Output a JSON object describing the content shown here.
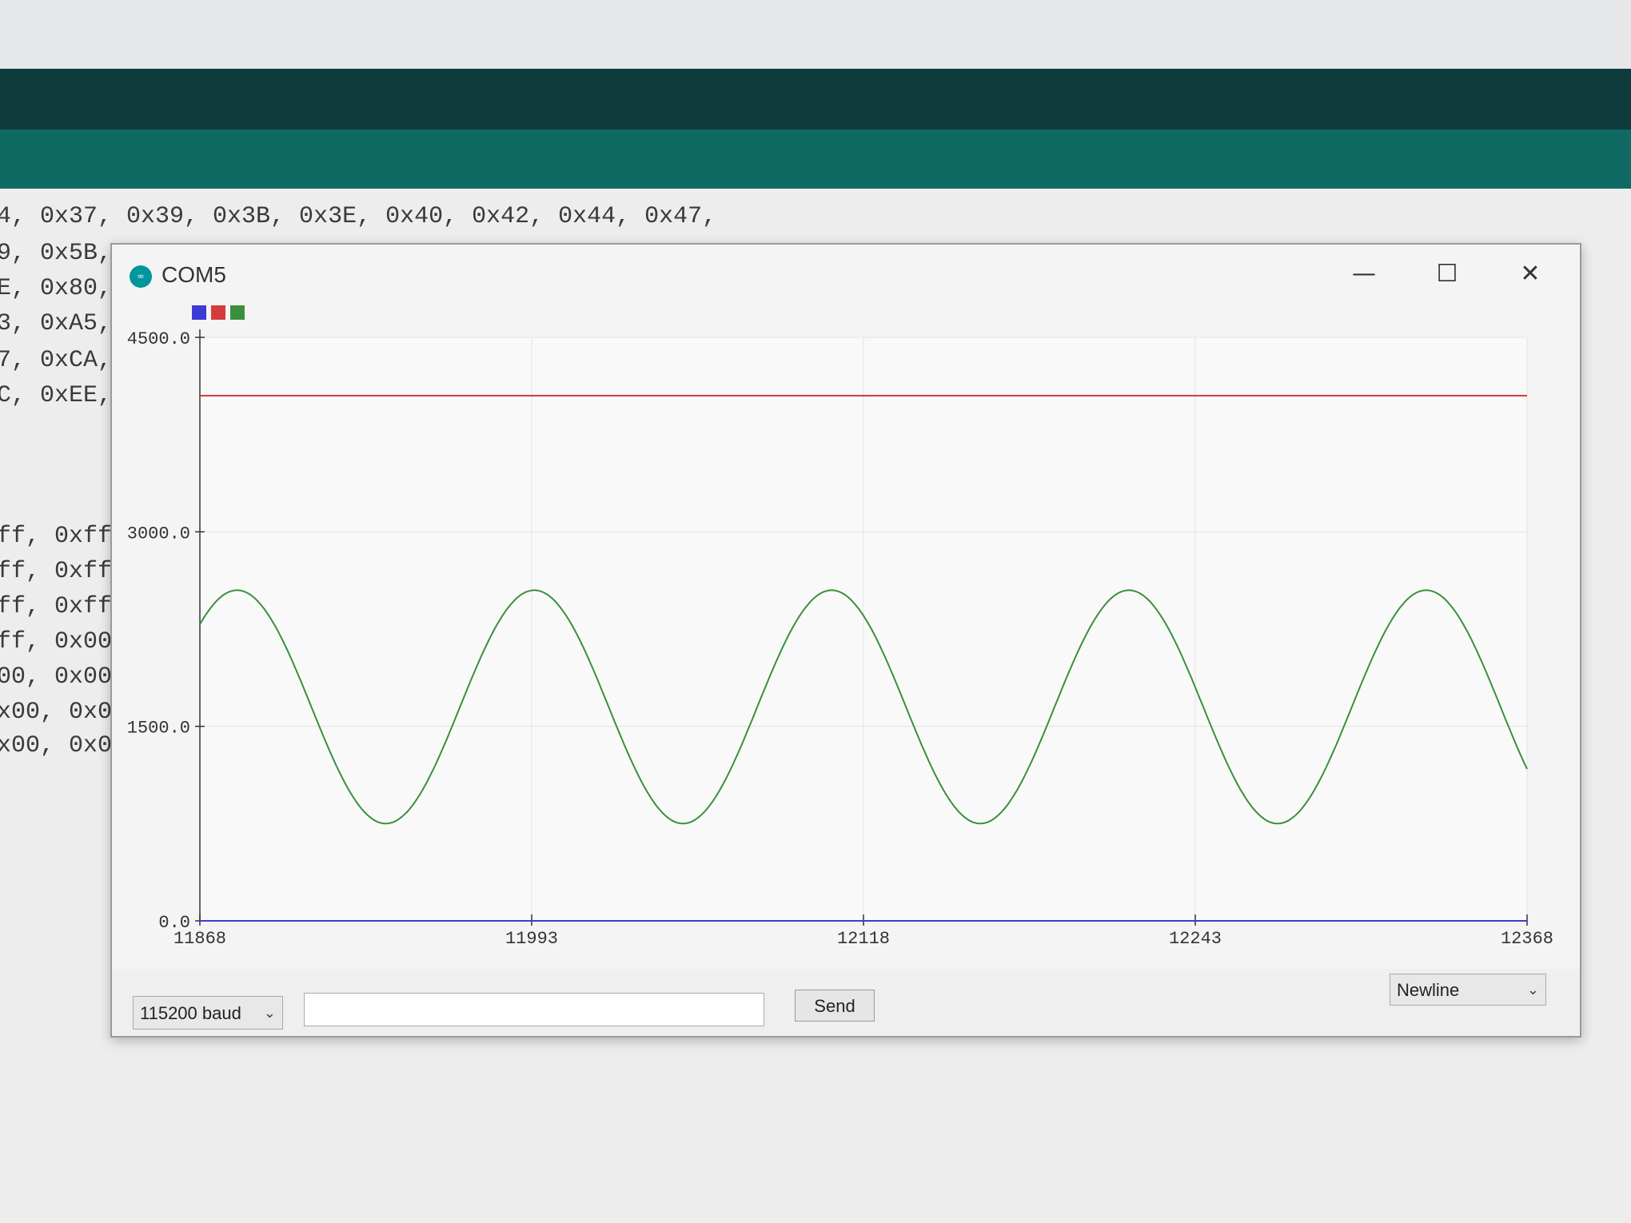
{
  "editor": {
    "lines": [
      "4, 0x37, 0x39, 0x3B, 0x3E, 0x40, 0x42, 0x44, 0x47,",
      "9, 0x5B,",
      "E, 0x80,",
      "3, 0xA5,",
      "7, 0xCA,",
      "C, 0xEE,",
      "ff, 0xff,",
      "ff, 0xff,",
      "ff, 0xff,",
      "ff, 0x00,",
      "00, 0x00,",
      "x00, 0x00,",
      "x00, 0x00,"
    ]
  },
  "window": {
    "title": "COM5",
    "icon": "arduino-logo-icon",
    "controls": {
      "minimize": "—",
      "maximize": "☐",
      "close": "✕"
    }
  },
  "colors": {
    "series1": "#3b3bd6",
    "series2": "#d63b3b",
    "series3": "#3b8f3b",
    "grid": "#e2e2e2"
  },
  "chart_data": {
    "type": "line",
    "ylim": [
      0,
      4500
    ],
    "y_ticks": [
      "4500.0",
      "3000.0",
      "1500.0",
      "0.0"
    ],
    "y_tick_values": [
      4500,
      3000,
      1500,
      0
    ],
    "xlim": [
      11868,
      12368
    ],
    "x_ticks": [
      "11868",
      "11993",
      "12118",
      "12243",
      "12368"
    ],
    "x_tick_values": [
      11868,
      11993,
      12118,
      12243,
      12368
    ],
    "series": [
      {
        "color": "#3b3bd6",
        "constant": 0
      },
      {
        "color": "#d63b3b",
        "constant": 4050
      },
      {
        "color": "#3b8f3b",
        "sine": {
          "mean": 1650,
          "amplitude": 900,
          "period": 112,
          "peak_x": 11882
        }
      }
    ],
    "grid": true,
    "legend": "top-left"
  },
  "controls": {
    "baud": "115200 baud",
    "send_input_value": "",
    "send_label": "Send",
    "line_ending": "Newline"
  }
}
